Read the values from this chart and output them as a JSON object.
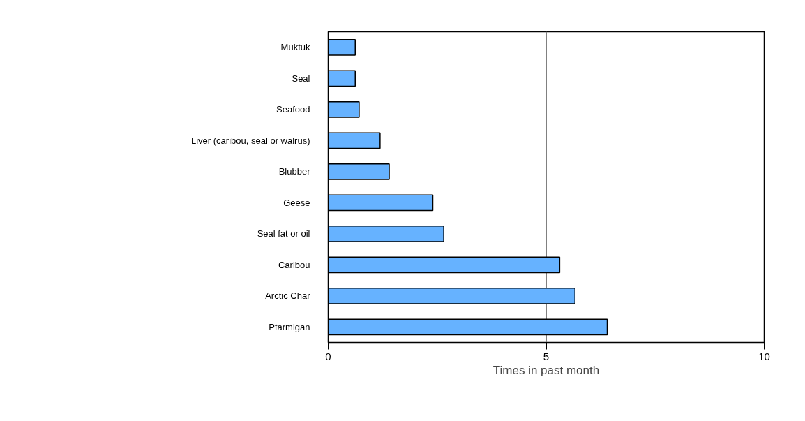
{
  "chart_data": {
    "type": "bar",
    "orientation": "horizontal",
    "xlabel": "Times in past month",
    "categories": [
      "Muktuk",
      "Seal",
      "Seafood",
      "Liver (caribou, seal or walrus)",
      "Blubber",
      "Geese",
      "Seal fat or oil",
      "Caribou",
      "Arctic Char",
      "Ptarmigan"
    ],
    "values": [
      0.62,
      0.62,
      0.71,
      1.19,
      1.4,
      2.4,
      2.65,
      5.31,
      5.66,
      6.4
    ],
    "color": "#66b2ff",
    "xlim": [
      0,
      10
    ],
    "xticks": [
      0,
      5,
      10
    ],
    "grid": "x"
  }
}
